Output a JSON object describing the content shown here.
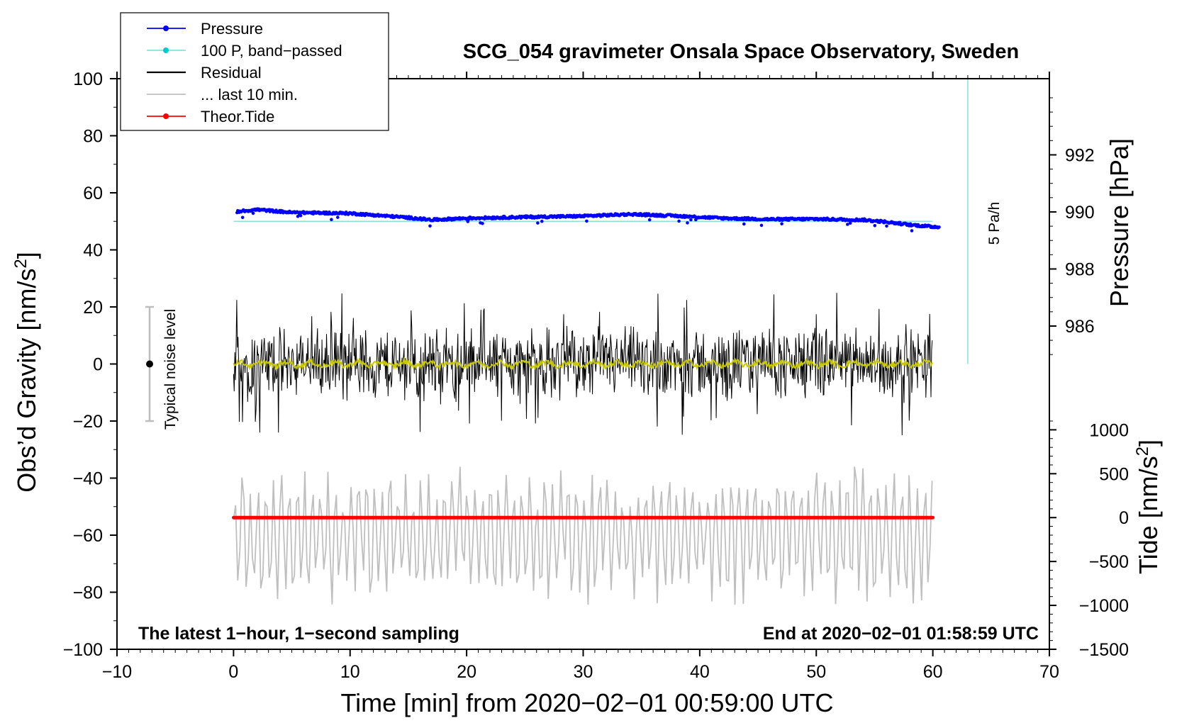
{
  "chart_data": {
    "type": "line",
    "title": "SCG_054 gravimeter Onsala Space Observatory, Sweden",
    "xlabel": "Time [min] from 2020−02−01 00:59:00 UTC",
    "ylabel_left": "Obs’d Gravity [nm/s",
    "ylabel_left_sup": "2",
    "ylabel_left_end": "]",
    "ylabel_right_pressure": "Pressure [hPa]",
    "ylabel_right_tide": "Tide [nm/s",
    "ylabel_right_tide_sup": "2",
    "ylabel_right_tide_end": "]",
    "xlim": [
      -10,
      70
    ],
    "ylim": [
      -100,
      100
    ],
    "x_ticks": [
      "−10",
      "0",
      "10",
      "20",
      "30",
      "40",
      "50",
      "60",
      "70"
    ],
    "y_ticks": [
      "−100",
      "−80",
      "−60",
      "−40",
      "−20",
      "0",
      "20",
      "40",
      "60",
      "80",
      "100"
    ],
    "pressure_axis": {
      "range_hPa": [
        974.67,
        994.67
      ],
      "ticks": [
        "986",
        "988",
        "990",
        "992"
      ]
    },
    "tide_axis": {
      "range_nm_s2": [
        -1500,
        5000
      ],
      "ticks": [
        "−1500",
        "−1000",
        "−500",
        "0",
        "500",
        "1000"
      ]
    },
    "legend": {
      "placement": "top-left",
      "items": [
        {
          "label": "Pressure",
          "color": "#0000ff",
          "style": "line-dot"
        },
        {
          "label": "100 P, band−passed",
          "color": "#00cccc",
          "style": "line-dot"
        },
        {
          "label": "Residual",
          "color": "#000000",
          "style": "line"
        },
        {
          "label": "... last 10 min.",
          "color": "#bfbfbf",
          "style": "line"
        },
        {
          "label": "Theor.Tide",
          "color": "#ff0000",
          "style": "line-dot"
        }
      ]
    },
    "annotations": {
      "bottom_left": "The latest 1−hour, 1−second sampling",
      "bottom_right": "End at 2020−02−01 01:58:59 UTC",
      "noise_label": "Typical noise level",
      "rate_label": "5 Pa/h"
    },
    "noise_bar": {
      "x": -7.2,
      "center": 0,
      "low": -20,
      "high": 20
    },
    "rate_bar": {
      "x": 63,
      "y_from": 0,
      "y_to": 100
    },
    "series": [
      {
        "name": "Pressure",
        "color": "#0000ff",
        "unit": "hPa",
        "x": [
          0,
          2,
          5,
          10,
          15,
          17,
          20,
          25,
          30,
          34,
          38,
          42,
          46,
          50,
          54,
          56,
          58,
          60
        ],
        "values": [
          990.0,
          990.08,
          989.98,
          989.95,
          989.8,
          989.72,
          989.78,
          989.82,
          989.85,
          989.92,
          989.86,
          989.78,
          989.74,
          989.75,
          989.72,
          989.65,
          989.55,
          989.48
        ]
      },
      {
        "name": "100 P, band-passed",
        "color": "#00cccc",
        "unit": "nm/s2",
        "x": [
          0,
          60
        ],
        "values": [
          50,
          50
        ]
      },
      {
        "name": "Residual",
        "color": "#000000",
        "unit": "nm/s2",
        "x_range": [
          0,
          60
        ],
        "mean": 0,
        "typical_amplitude": 10,
        "min": -31,
        "max": 25
      },
      {
        "name": "Residual smoothed",
        "color": "#c8c800",
        "unit": "nm/s2",
        "x_range": [
          0,
          60
        ],
        "mean": 0,
        "amplitude": 1.5
      },
      {
        "name": "... last 10 min.",
        "color": "#bfbfbf",
        "unit": "nm/s2",
        "x_range": [
          0,
          60
        ],
        "mean": -60,
        "min": -87,
        "max": -36
      },
      {
        "name": "Theor.Tide",
        "color": "#ff0000",
        "unit": "nm/s2",
        "x": [
          0,
          60
        ],
        "values": [
          0,
          0
        ]
      }
    ]
  }
}
